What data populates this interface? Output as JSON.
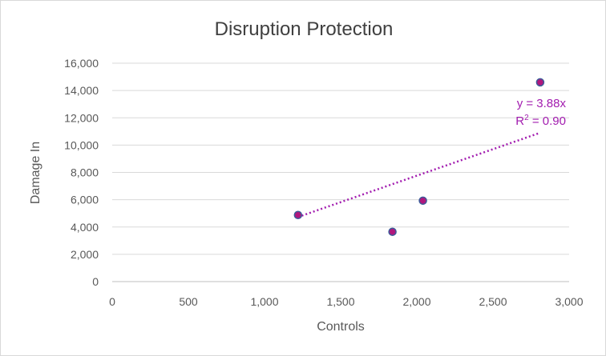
{
  "chart_data": {
    "type": "scatter",
    "title": "Disruption Protection",
    "xlabel": "Controls",
    "ylabel": "Damage In",
    "xlim": [
      0,
      3000
    ],
    "ylim": [
      0,
      16000
    ],
    "x_ticks": [
      "0",
      "500",
      "1,000",
      "1,500",
      "2,000",
      "2,500",
      "3,000"
    ],
    "y_ticks": [
      "0",
      "2,000",
      "4,000",
      "6,000",
      "8,000",
      "10,000",
      "12,000",
      "14,000",
      "16,000"
    ],
    "grid": "horizontal",
    "series": [
      {
        "points": [
          {
            "x": 1220,
            "y": 4880
          },
          {
            "x": 1840,
            "y": 3650
          },
          {
            "x": 2040,
            "y": 5930
          },
          {
            "x": 2810,
            "y": 14600
          }
        ]
      }
    ],
    "trendline": {
      "type": "linear",
      "slope": 3.88,
      "x_range": [
        1220,
        2810
      ],
      "equation": "y = 3.88x",
      "r2_prefix": "R",
      "r2_sup": "2",
      "r2_value": " = 0.90"
    },
    "colors": {
      "marker_fill": "#b0177d",
      "marker_edge": "#3d5a99",
      "trendline": "#a21caf",
      "grid": "#d9d9d9"
    }
  }
}
